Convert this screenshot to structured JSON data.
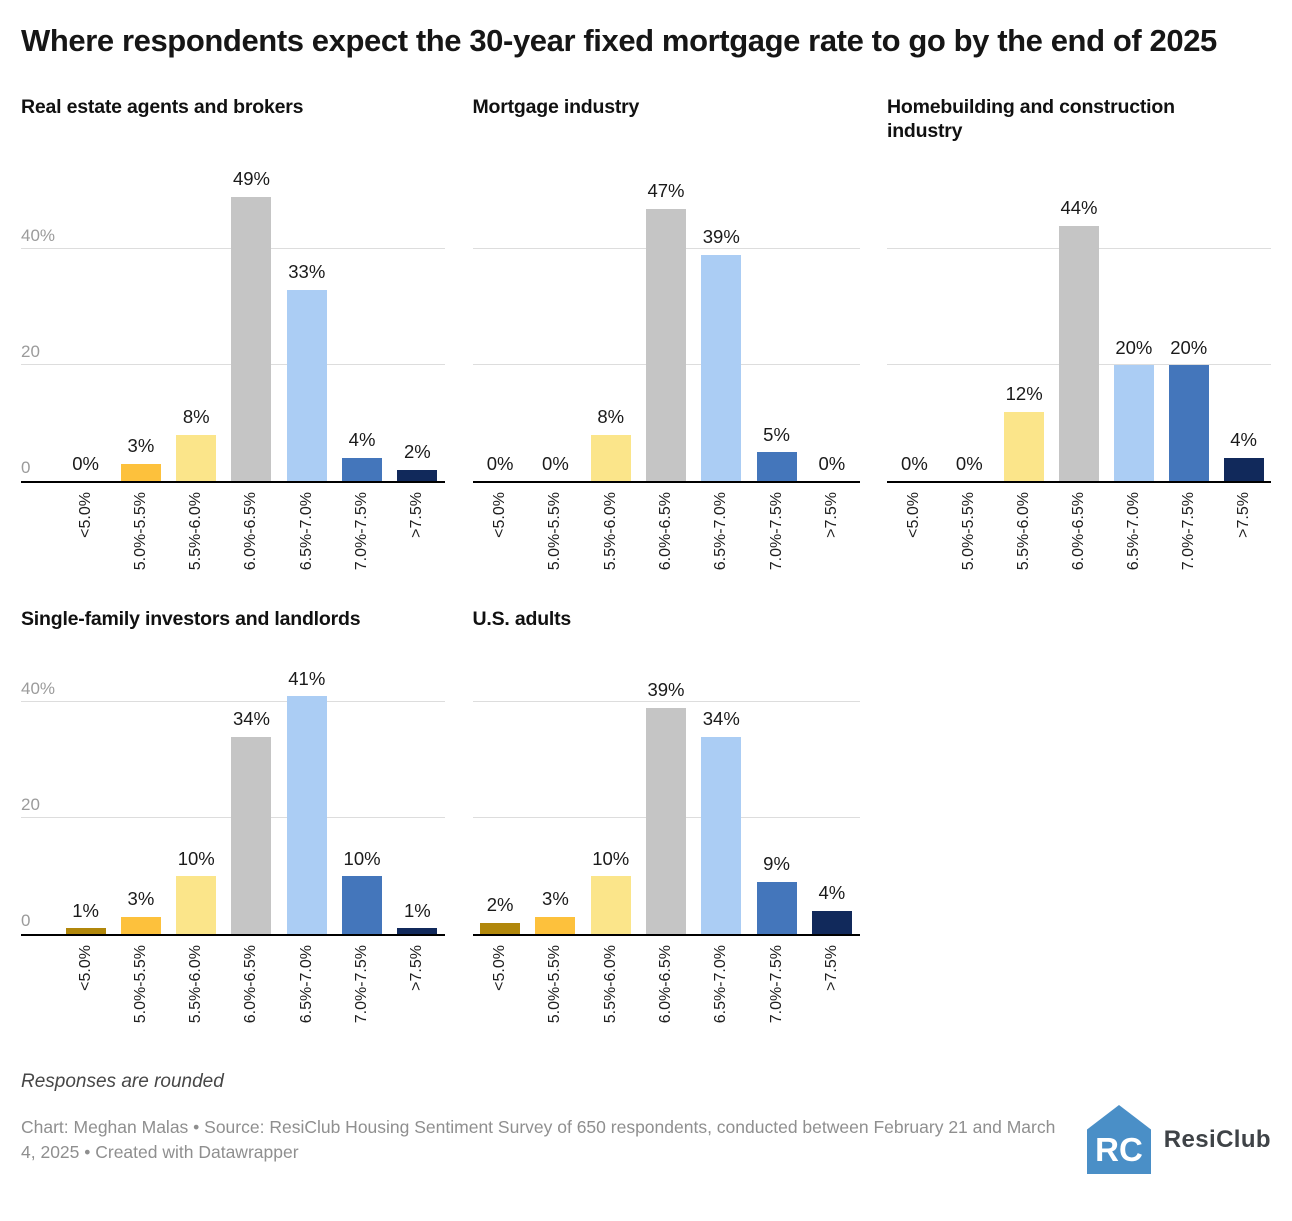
{
  "page": {
    "title": "Where respondents expect the 30-year fixed mortgage rate to go by the end of 2025",
    "footnote": "Responses are rounded",
    "byline": "Chart: Meghan Malas • Source: ResiClub Housing Sentiment Survey of 650 respondents, conducted between February 21 and March 4, 2025 • Created with Datawrapper",
    "logo_text": "ResiClub",
    "logo_color": "#4A8FC7"
  },
  "chart_data": {
    "type": "bar",
    "layout": "small-multiples",
    "title": "Where respondents expect the 30-year fixed mortgage rate to go by the end of 2025",
    "categories": [
      "<5.0%",
      "5.0%-5.5%",
      "5.5%-6.0%",
      "6.0%-6.5%",
      "6.5%-7.0%",
      "7.0%-7.5%",
      ">7.5%"
    ],
    "bar_colors": [
      "#B1870B",
      "#FDC13C",
      "#FBE58A",
      "#C5C5C5",
      "#ABCDF4",
      "#4476BB",
      "#11295B"
    ],
    "panels": [
      {
        "title": "Real estate agents and brokers",
        "values": [
          0,
          3,
          8,
          49,
          33,
          4,
          2
        ],
        "show_y_labels": true
      },
      {
        "title": "Mortgage industry",
        "values": [
          0,
          0,
          8,
          47,
          39,
          5,
          0
        ],
        "show_y_labels": false
      },
      {
        "title": "Homebuilding and construction industry",
        "values": [
          0,
          0,
          12,
          44,
          20,
          20,
          4
        ],
        "show_y_labels": false
      },
      {
        "title": "Single-family investors and landlords",
        "values": [
          1,
          3,
          10,
          34,
          41,
          10,
          1
        ],
        "show_y_labels": true
      },
      {
        "title": "U.S. adults",
        "values": [
          2,
          3,
          10,
          39,
          34,
          9,
          4
        ],
        "show_y_labels": false
      }
    ],
    "y_ticks": [
      {
        "value": 0,
        "label": "0"
      },
      {
        "value": 20,
        "label": "20"
      },
      {
        "value": 40,
        "label": "40%"
      }
    ],
    "gridline_values": [
      20,
      40
    ],
    "ylim": [
      0,
      57
    ],
    "grid": true,
    "legend": "none",
    "value_label_format": "{value}%",
    "colors": {
      "gridline": "#DDDDDD",
      "axis": "#000000",
      "y_label": "#9B9B9B",
      "value_label": "#1A1A1A",
      "x_label": "#1D1D1D"
    }
  }
}
